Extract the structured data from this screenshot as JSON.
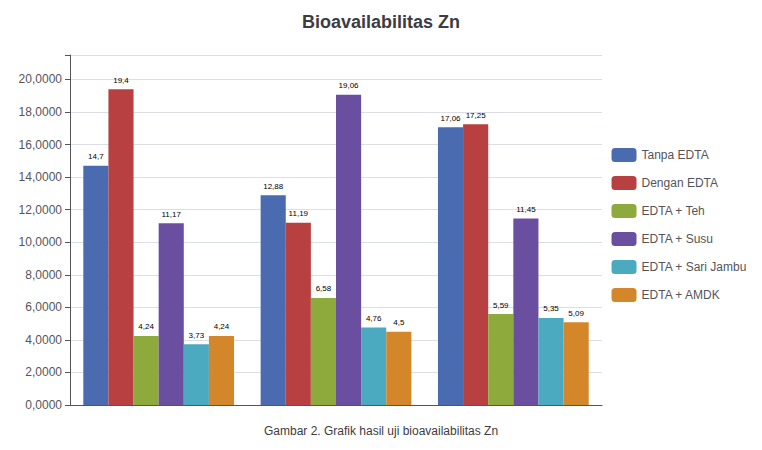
{
  "chart_data": {
    "type": "bar",
    "title": "Bioavailabilitas Zn",
    "caption": "Gambar 2. Grafik hasil uji bioavailabilitas Zn",
    "categories": [
      null,
      null,
      null
    ],
    "series": [
      {
        "name": "Tanpa EDTA",
        "color": "#4a6baf",
        "values": [
          14.7,
          12.88,
          17.06
        ],
        "value_labels": [
          "14,7",
          "12,88",
          "17,06"
        ]
      },
      {
        "name": "Dengan EDTA",
        "color": "#b94040",
        "values": [
          19.4,
          11.19,
          17.25
        ],
        "value_labels": [
          "19,4",
          "11,19",
          "17,25"
        ]
      },
      {
        "name": "EDTA + Teh",
        "color": "#8faa3c",
        "values": [
          4.24,
          6.58,
          5.59
        ],
        "value_labels": [
          "4,24",
          "6,58",
          "5,59"
        ]
      },
      {
        "name": "EDTA + Susu",
        "color": "#6a4fa0",
        "values": [
          11.17,
          19.06,
          11.45
        ],
        "value_labels": [
          "11,17",
          "19,06",
          "11,45"
        ]
      },
      {
        "name": "EDTA + Sari Jambu",
        "color": "#4baac0",
        "values": [
          3.73,
          4.76,
          5.35
        ],
        "value_labels": [
          "3,73",
          "4,76",
          "5,35"
        ]
      },
      {
        "name": "EDTA + AMDK",
        "color": "#d4862a",
        "values": [
          4.24,
          4.5,
          5.09
        ],
        "value_labels": [
          "4,24",
          "4,5",
          "5,09"
        ]
      }
    ],
    "ylim": [
      0,
      21.5
    ],
    "yticks": [
      {
        "value": 0,
        "label": "0,0000"
      },
      {
        "value": 2,
        "label": "2,0000"
      },
      {
        "value": 4,
        "label": "4,0000"
      },
      {
        "value": 6,
        "label": "6,0000"
      },
      {
        "value": 8,
        "label": "8,0000"
      },
      {
        "value": 10,
        "label": "10,0000"
      },
      {
        "value": 12,
        "label": "12,0000"
      },
      {
        "value": 14,
        "label": "14,0000"
      },
      {
        "value": 16,
        "label": "16,0000"
      },
      {
        "value": 18,
        "label": "18,0000"
      },
      {
        "value": 20,
        "label": "20,0000"
      }
    ],
    "grid": true,
    "legend": "right",
    "data_labels": true
  }
}
